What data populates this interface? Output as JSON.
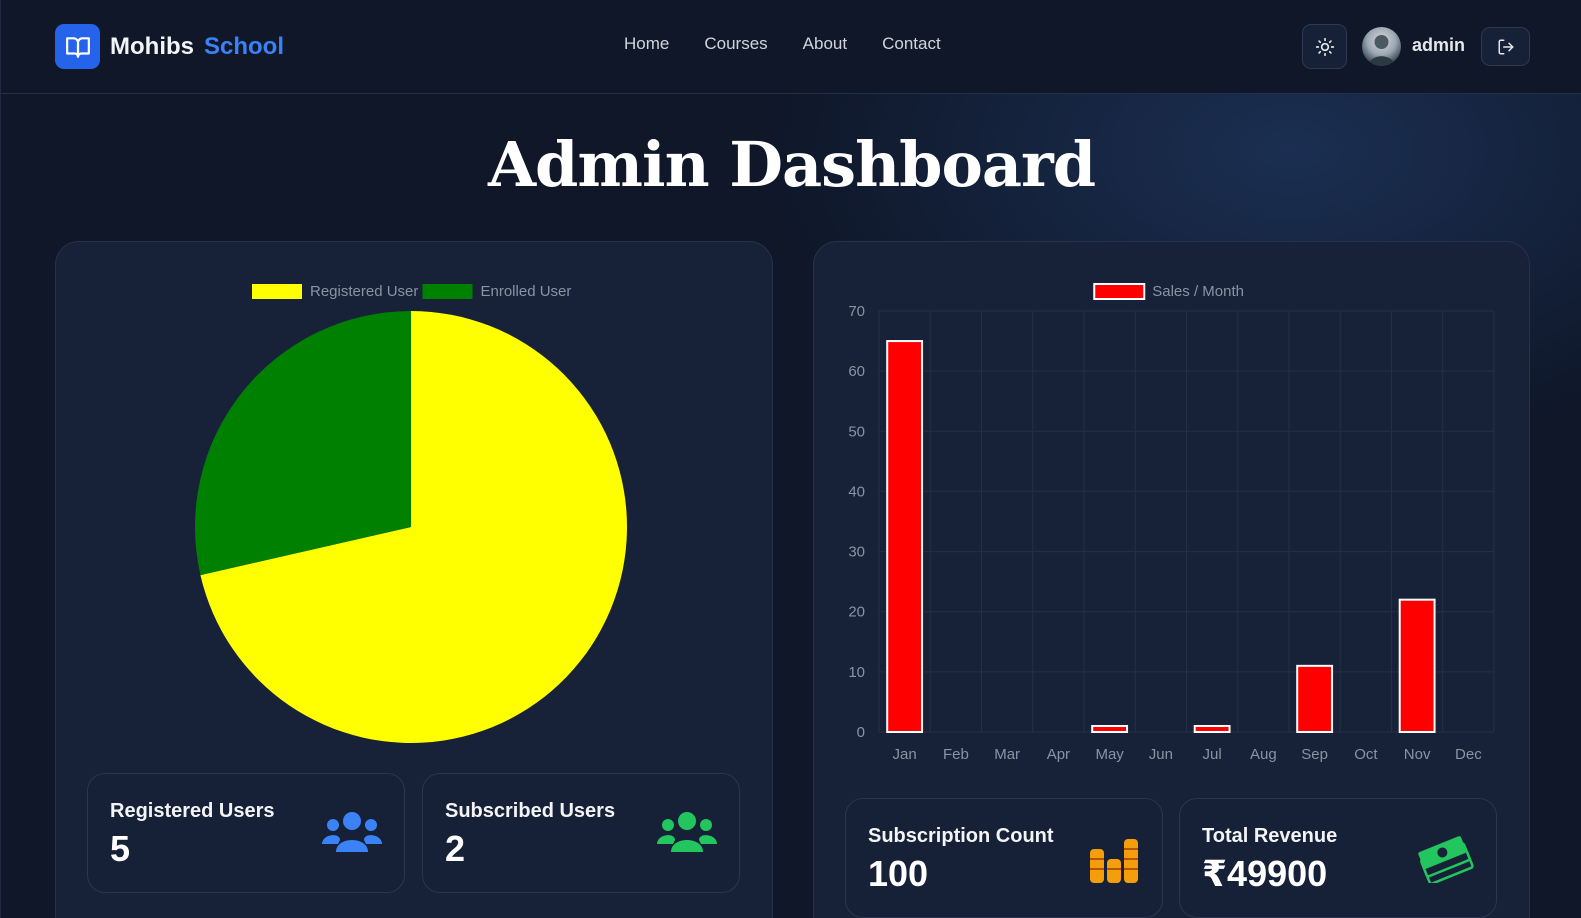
{
  "header": {
    "brand_name": "Mohibs",
    "brand_accent": "School",
    "nav": [
      "Home",
      "Courses",
      "About",
      "Contact"
    ],
    "user_name": "admin"
  },
  "page": {
    "title": "Admin Dashboard"
  },
  "colors": {
    "accent": "#3b82f6",
    "background": "#0f1729",
    "panel": "#172238"
  },
  "stats": [
    {
      "label": "Registered Users",
      "value": "5",
      "icon": "users-icon",
      "color": "#3b82f6"
    },
    {
      "label": "Subscribed Users",
      "value": "2",
      "icon": "users-icon",
      "color": "#22c55e"
    },
    {
      "label": "Subscription Count",
      "value": "100",
      "icon": "coins-icon",
      "color": "#f59e0b"
    },
    {
      "label": "Total Revenue",
      "value": "₹49900",
      "icon": "money-icon",
      "color": "#22c55e"
    }
  ],
  "chart_data": [
    {
      "type": "pie",
      "labels": [
        "Registered User",
        "Enrolled User"
      ],
      "values": [
        5,
        2
      ],
      "colors": [
        "#ffff00",
        "#008000"
      ],
      "legend": "top"
    },
    {
      "type": "bar",
      "categories": [
        "Jan",
        "Feb",
        "Mar",
        "Apr",
        "May",
        "Jun",
        "Jul",
        "Aug",
        "Sep",
        "Oct",
        "Nov",
        "Dec"
      ],
      "series": [
        {
          "name": "Sales / Month",
          "values": [
            65,
            0,
            0,
            0,
            1,
            0,
            1,
            0,
            11,
            0,
            22,
            0
          ],
          "color": "#ff0000"
        }
      ],
      "ylim": [
        0,
        70
      ],
      "yticks": [
        0,
        10,
        20,
        30,
        40,
        50,
        60,
        70
      ],
      "grid": true,
      "legend": "top"
    }
  ]
}
